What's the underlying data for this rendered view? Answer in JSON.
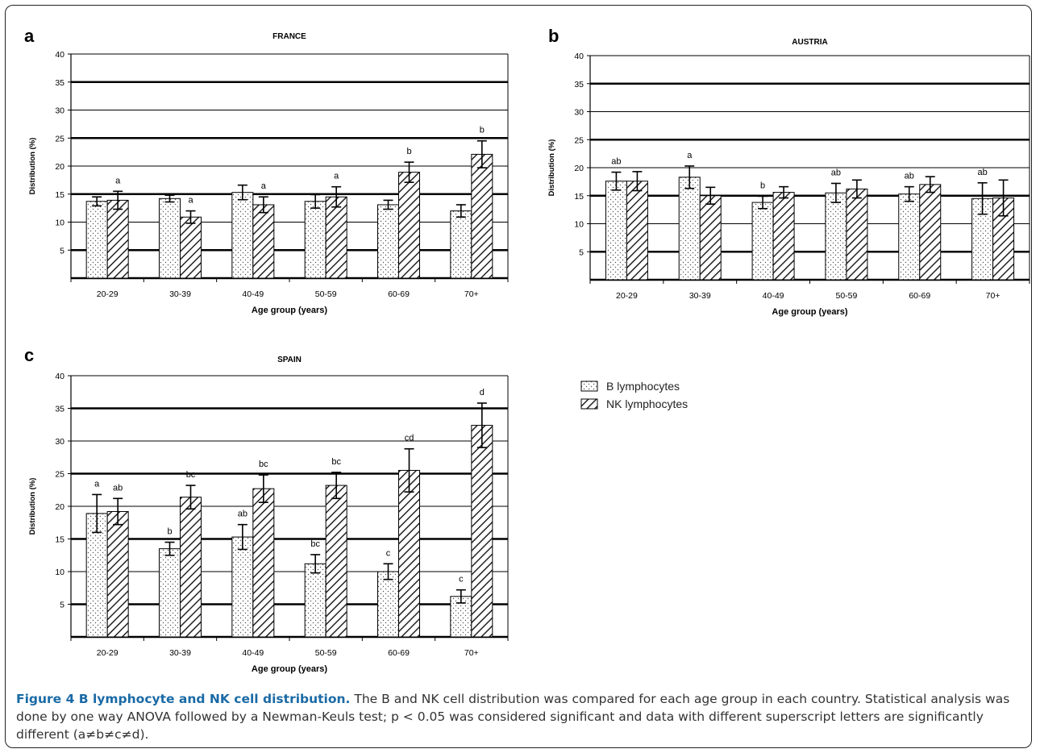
{
  "colors": {
    "nk_hatch": "#222222",
    "b_dots": "#555555",
    "caption_title": "#1a6aa6",
    "axis": "#000000"
  },
  "legend": {
    "b": "B lymphocytes",
    "nk": "NK lymphocytes"
  },
  "caption": {
    "title": "Figure 4 B lymphocyte and NK cell distribution.",
    "body": "The B and NK cell distribution was compared for each age group in each country. Statistical analysis was done by one way ANOVA followed by a Newman-Keuls test; p < 0.05 was considered significant and data with different superscript letters are significantly different (a≠b≠c≠d)."
  },
  "chart_data": [
    {
      "panel": "a",
      "type": "bar",
      "title": "FRANCE",
      "xlabel": "Age group (years)",
      "ylabel": "Distribution (%)",
      "ylim": [
        0,
        40
      ],
      "yticks": [
        5,
        10,
        15,
        20,
        25,
        30,
        35,
        40
      ],
      "categories": [
        "20-29",
        "30-39",
        "40-49",
        "50-59",
        "60-69",
        "70+"
      ],
      "series": [
        {
          "name": "B lymphocytes",
          "values": [
            13.7,
            14.2,
            15.3,
            13.7,
            13.1,
            12.0
          ],
          "errors": [
            0.8,
            0.6,
            1.3,
            1.2,
            0.8,
            1.1
          ],
          "labels": [
            "",
            "",
            "",
            "",
            "",
            ""
          ]
        },
        {
          "name": "NK lymphocytes",
          "values": [
            13.9,
            10.9,
            13.1,
            14.5,
            18.9,
            22.1
          ],
          "errors": [
            1.6,
            1.1,
            1.4,
            1.8,
            1.8,
            2.4
          ],
          "labels": [
            "a",
            "a",
            "a",
            "a",
            "b",
            "b"
          ]
        }
      ]
    },
    {
      "panel": "b",
      "type": "bar",
      "title": "AUSTRIA",
      "xlabel": "Age group (years)",
      "ylabel": "Distribution (%)",
      "ylim": [
        0,
        40
      ],
      "yticks": [
        5,
        10,
        15,
        20,
        25,
        30,
        35,
        40
      ],
      "categories": [
        "20-29",
        "30-39",
        "40-49",
        "50-59",
        "60-69",
        "70+"
      ],
      "series": [
        {
          "name": "B lymphocytes",
          "values": [
            17.6,
            18.3,
            13.8,
            15.5,
            15.3,
            14.5
          ],
          "errors": [
            1.6,
            2.0,
            1.1,
            1.7,
            1.3,
            2.8
          ],
          "labels": [
            "ab",
            "a",
            "b",
            "ab",
            "ab",
            "ab"
          ]
        },
        {
          "name": "NK lymphocytes",
          "values": [
            17.6,
            15.0,
            15.6,
            16.2,
            17.0,
            14.6
          ],
          "errors": [
            1.7,
            1.5,
            1.0,
            1.6,
            1.4,
            3.2
          ],
          "labels": [
            "",
            "",
            "",
            "",
            "",
            ""
          ]
        }
      ]
    },
    {
      "panel": "c",
      "type": "bar",
      "title": "SPAIN",
      "xlabel": "Age group (years)",
      "ylabel": "Distribution (%)",
      "ylim": [
        0,
        40
      ],
      "yticks": [
        5,
        10,
        15,
        20,
        25,
        30,
        35,
        40
      ],
      "categories": [
        "20-29",
        "30-39",
        "40-49",
        "50-59",
        "60-69",
        "70+"
      ],
      "series": [
        {
          "name": "B lymphocytes",
          "values": [
            18.9,
            13.5,
            15.3,
            11.2,
            10.0,
            6.2
          ],
          "errors": [
            2.9,
            1.0,
            1.9,
            1.4,
            1.2,
            1.0
          ],
          "labels": [
            "a",
            "b",
            "ab",
            "bc",
            "c",
            "c"
          ]
        },
        {
          "name": "NK lymphocytes",
          "values": [
            19.2,
            21.4,
            22.7,
            23.2,
            25.5,
            32.4
          ],
          "errors": [
            2.0,
            1.8,
            2.1,
            2.0,
            3.3,
            3.4
          ],
          "labels": [
            "ab",
            "bc",
            "bc",
            "bc",
            "cd",
            "d"
          ]
        }
      ]
    }
  ]
}
